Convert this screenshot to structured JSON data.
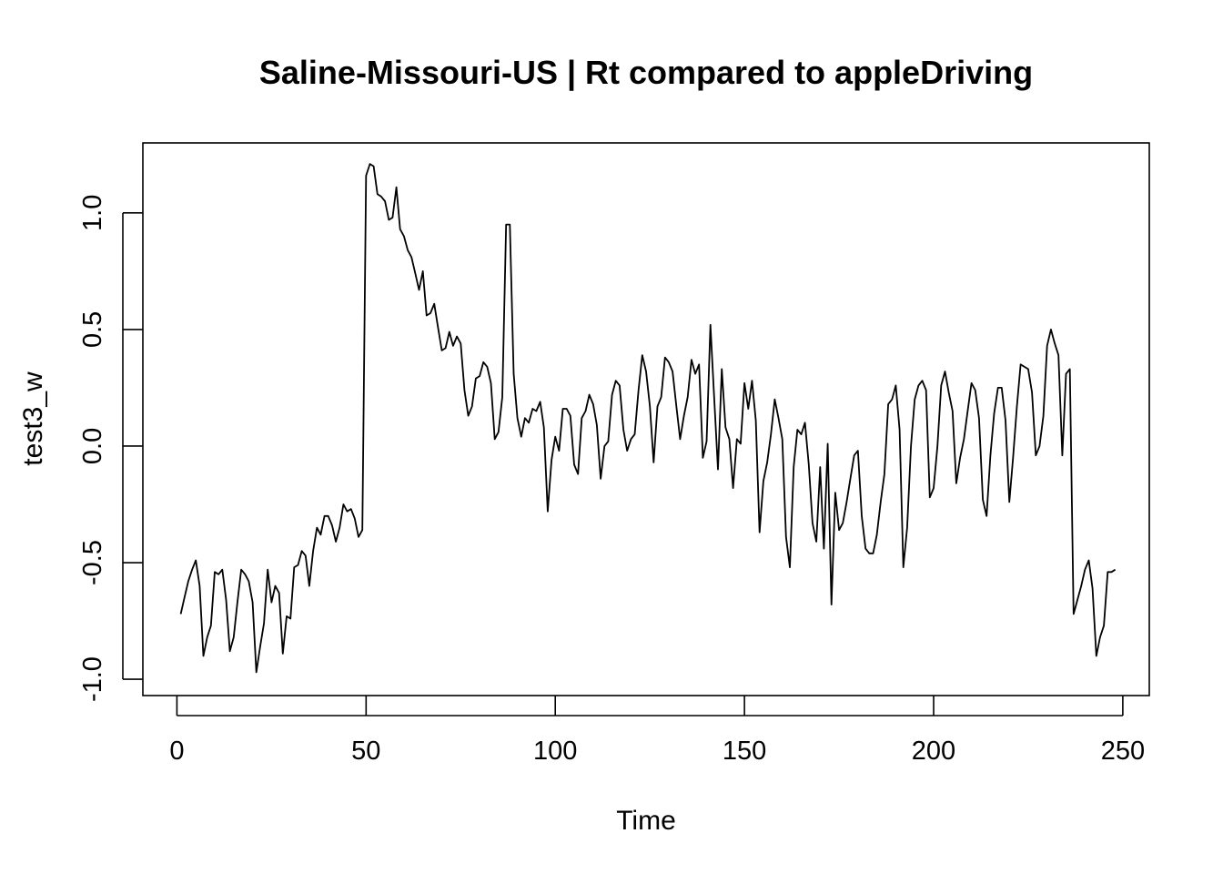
{
  "chart_data": {
    "type": "line",
    "title": "Saline-Missouri-US | Rt compared to appleDriving",
    "xlabel": "Time",
    "ylabel": "test3_w",
    "xlim": [
      -9,
      257
    ],
    "ylim": [
      -1.07,
      1.3
    ],
    "xticks": [
      0,
      50,
      100,
      150,
      200,
      250
    ],
    "yticks": [
      -1.0,
      -0.5,
      0.0,
      0.5,
      1.0
    ],
    "xtick_labels": [
      "0",
      "50",
      "100",
      "150",
      "200",
      "250"
    ],
    "ytick_labels": [
      "-1.0",
      "-0.5",
      "0.0",
      "0.5",
      "1.0"
    ],
    "grid": false,
    "series": [
      {
        "color": "#000000",
        "y": [
          -0.72,
          -0.65,
          -0.58,
          -0.53,
          -0.49,
          -0.6,
          -0.9,
          -0.82,
          -0.77,
          -0.54,
          -0.55,
          -0.53,
          -0.66,
          -0.88,
          -0.82,
          -0.67,
          -0.53,
          -0.55,
          -0.58,
          -0.67,
          -0.97,
          -0.86,
          -0.76,
          -0.53,
          -0.67,
          -0.6,
          -0.63,
          -0.89,
          -0.73,
          -0.74,
          -0.52,
          -0.51,
          -0.45,
          -0.47,
          -0.6,
          -0.45,
          -0.35,
          -0.38,
          -0.3,
          -0.3,
          -0.34,
          -0.41,
          -0.35,
          -0.25,
          -0.28,
          -0.27,
          -0.31,
          -0.39,
          -0.36,
          1.16,
          1.21,
          1.2,
          1.08,
          1.07,
          1.05,
          0.97,
          0.98,
          1.11,
          0.93,
          0.9,
          0.84,
          0.81,
          0.74,
          0.67,
          0.75,
          0.56,
          0.57,
          0.61,
          0.51,
          0.41,
          0.42,
          0.49,
          0.43,
          0.47,
          0.44,
          0.24,
          0.13,
          0.17,
          0.29,
          0.3,
          0.36,
          0.34,
          0.27,
          0.03,
          0.06,
          0.21,
          0.95,
          0.95,
          0.31,
          0.12,
          0.04,
          0.12,
          0.1,
          0.16,
          0.15,
          0.19,
          0.08,
          -0.28,
          -0.06,
          0.04,
          -0.02,
          0.16,
          0.16,
          0.13,
          -0.08,
          -0.12,
          0.12,
          0.15,
          0.22,
          0.18,
          0.09,
          -0.14,
          0.0,
          0.02,
          0.22,
          0.28,
          0.26,
          0.07,
          -0.02,
          0.03,
          0.05,
          0.24,
          0.39,
          0.32,
          0.17,
          -0.07,
          0.17,
          0.21,
          0.38,
          0.36,
          0.32,
          0.17,
          0.03,
          0.13,
          0.21,
          0.37,
          0.31,
          0.35,
          -0.05,
          0.02,
          0.52,
          0.21,
          -0.1,
          0.33,
          0.08,
          0.03,
          -0.18,
          0.03,
          0.01,
          0.27,
          0.16,
          0.28,
          0.11,
          -0.37,
          -0.15,
          -0.07,
          0.05,
          0.2,
          0.12,
          0.03,
          -0.39,
          -0.52,
          -0.09,
          0.07,
          0.05,
          0.1,
          -0.08,
          -0.33,
          -0.41,
          -0.09,
          -0.44,
          0.01,
          -0.68,
          -0.2,
          -0.36,
          -0.33,
          -0.24,
          -0.14,
          -0.04,
          -0.02,
          -0.3,
          -0.44,
          -0.46,
          -0.46,
          -0.38,
          -0.24,
          -0.12,
          0.18,
          0.2,
          0.26,
          0.07,
          -0.52,
          -0.35,
          0.0,
          0.2,
          0.26,
          0.28,
          0.24,
          -0.22,
          -0.18,
          0.0,
          0.26,
          0.32,
          0.23,
          0.15,
          -0.16,
          -0.05,
          0.03,
          0.15,
          0.27,
          0.24,
          0.12,
          -0.23,
          -0.3,
          -0.04,
          0.14,
          0.25,
          0.25,
          0.11,
          -0.24,
          -0.05,
          0.17,
          0.35,
          0.34,
          0.33,
          0.23,
          -0.04,
          0.0,
          0.13,
          0.43,
          0.5,
          0.44,
          0.39,
          -0.04,
          0.31,
          0.33,
          -0.72,
          -0.66,
          -0.6,
          -0.53,
          -0.49,
          -0.61,
          -0.9,
          -0.82,
          -0.77,
          -0.54,
          -0.54,
          -0.53
        ]
      }
    ]
  }
}
